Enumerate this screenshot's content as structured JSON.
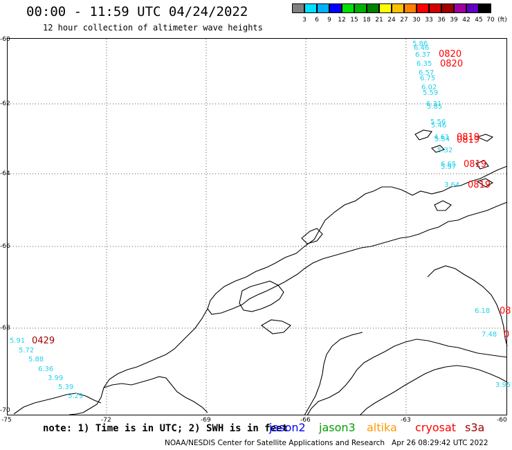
{
  "header": {
    "title": "00:00 - 11:59 UTC 04/24/2022",
    "subtitle": "12 hour collection of altimeter wave heights"
  },
  "scale": {
    "unit": "(ft)",
    "ticks": [
      "3",
      "6",
      "9",
      "12",
      "15",
      "18",
      "21",
      "24",
      "27",
      "30",
      "33",
      "36",
      "39",
      "42",
      "45",
      "70"
    ],
    "colors": [
      "#808080",
      "#00e0ff",
      "#00b0ff",
      "#0000ff",
      "#00e000",
      "#00b000",
      "#008000",
      "#ffff00",
      "#ffc000",
      "#ff8000",
      "#ff0000",
      "#d00000",
      "#a00000",
      "#a000a0",
      "#6000c0",
      "#000000"
    ]
  },
  "axes": {
    "lat_labels": [
      "-60",
      "-62",
      "-64",
      "-66",
      "-68",
      "-70"
    ],
    "lon_labels": [
      "-75",
      "-72",
      "-69",
      "-66",
      "-63",
      "-60"
    ]
  },
  "observations": {
    "cyan_values": [
      {
        "text": "5.86"
      },
      {
        "text": "6.46"
      },
      {
        "text": "6.37"
      },
      {
        "text": "6.35"
      },
      {
        "text": "6.57"
      },
      {
        "text": "6.75"
      },
      {
        "text": "6.02"
      },
      {
        "text": "5.59"
      },
      {
        "text": "6.31"
      },
      {
        "text": "5.85"
      },
      {
        "text": "5.56"
      },
      {
        "text": "5.46"
      },
      {
        "text": "4.61"
      },
      {
        "text": "5.54"
      },
      {
        "text": "5.32"
      },
      {
        "text": "6.65"
      },
      {
        "text": "5.97"
      },
      {
        "text": "3.64"
      },
      {
        "text": "6.18"
      },
      {
        "text": "7.48"
      },
      {
        "text": "3.95"
      },
      {
        "text": "5.91"
      },
      {
        "text": "5.72"
      },
      {
        "text": "5.88"
      },
      {
        "text": "6.36"
      },
      {
        "text": "3.99"
      },
      {
        "text": "5.39"
      },
      {
        "text": "5.29"
      }
    ],
    "time_labels": [
      {
        "text": "0820",
        "color": "#ff0000"
      },
      {
        "text": "0820",
        "color": "#ff0000"
      },
      {
        "text": "0819",
        "color": "#ff0000"
      },
      {
        "text": "0819",
        "color": "#ff0000"
      },
      {
        "text": "0819",
        "color": "#ff0000"
      },
      {
        "text": "0819",
        "color": "#ff0000"
      },
      {
        "text": "08",
        "color": "#ff0000"
      },
      {
        "text": "0",
        "color": "#ff0000"
      },
      {
        "text": "0429",
        "color": "#a00000"
      }
    ]
  },
  "footer": {
    "note": "note: 1) Time is in UTC; 2) SWH is in feet",
    "satellites": [
      {
        "name": "jason2",
        "color": "#0000ff"
      },
      {
        "name": "jason3",
        "color": "#00a000"
      },
      {
        "name": "altika",
        "color": "#ff9900"
      },
      {
        "name": "cryosat",
        "color": "#ff0000"
      },
      {
        "name": "s3a",
        "color": "#a00000"
      }
    ],
    "credit": "NOAA/NESDIS Center for Satellite Applications and Research   Apr 26 08:29:42 UTC 2022"
  }
}
